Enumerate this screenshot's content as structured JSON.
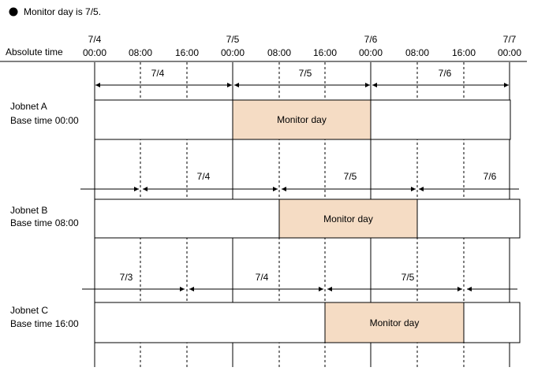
{
  "note": "Monitor day is 7/5.",
  "header": {
    "label": "Absolute time",
    "ticks": [
      {
        "date": "7/4",
        "time": "00:00"
      },
      {
        "date": "",
        "time": "08:00"
      },
      {
        "date": "",
        "time": "16:00"
      },
      {
        "date": "7/5",
        "time": "00:00"
      },
      {
        "date": "",
        "time": "08:00"
      },
      {
        "date": "",
        "time": "16:00"
      },
      {
        "date": "7/6",
        "time": "00:00"
      },
      {
        "date": "",
        "time": "08:00"
      },
      {
        "date": "",
        "time": "16:00"
      },
      {
        "date": "7/7",
        "time": "00:00"
      }
    ]
  },
  "jobnets": [
    {
      "name": "Jobnet A",
      "base": "Base time 00:00",
      "monitor_label": "Monitor day",
      "day_labels": [
        "7/4",
        "7/5",
        "7/6"
      ]
    },
    {
      "name": "Jobnet B",
      "base": "Base time 08:00",
      "monitor_label": "Monitor day",
      "day_labels": [
        "7/4",
        "7/5",
        "7/6"
      ]
    },
    {
      "name": "Jobnet C",
      "base": "Base time 16:00",
      "monitor_label": "Monitor day",
      "day_labels": [
        "7/3",
        "7/4",
        "7/5"
      ]
    }
  ],
  "colors": {
    "monitor_fill": "#f5dcc4",
    "line": "#000000"
  }
}
